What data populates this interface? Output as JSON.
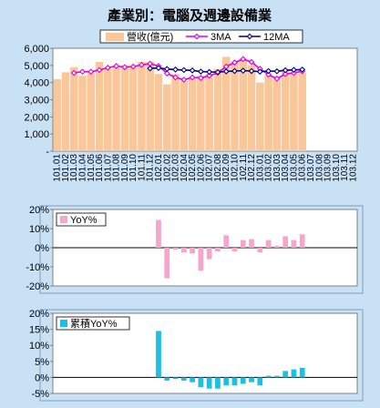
{
  "chart_data": [
    {
      "type": "bar",
      "title": "產業別：電腦及週邊設備業",
      "categories": [
        "101.01",
        "101.02",
        "101.03",
        "101.04",
        "101.05",
        "101.06",
        "101.07",
        "101.08",
        "101.09",
        "101.10",
        "101.11",
        "101.12",
        "102.01",
        "102.02",
        "102.03",
        "102.04",
        "102.05",
        "102.06",
        "102.07",
        "102.08",
        "102.09",
        "102.10",
        "102.11",
        "102.12",
        "103.01",
        "103.02",
        "103.03",
        "103.04",
        "103.05",
        "103.06",
        "103.07",
        "103.08",
        "103.09",
        "103.10",
        "103.11",
        "103.12"
      ],
      "ylim": [
        0,
        6000
      ],
      "yticks": [
        0,
        1000,
        2000,
        3000,
        4000,
        5000,
        6000
      ],
      "ytick_labels": [
        "-",
        "1,000",
        "2,000",
        "3,000",
        "4,000",
        "5,000",
        "6,000"
      ],
      "legend_position": "top",
      "grid": false,
      "colors": {
        "bar": "#f9c79a",
        "ma3": "#e000e0",
        "ma12": "#000080"
      },
      "series": [
        {
          "name": "營收(億元)",
          "kind": "bar",
          "values": [
            4200,
            4600,
            4900,
            4400,
            4600,
            5200,
            4800,
            4900,
            5000,
            4900,
            5200,
            5200,
            4500,
            3900,
            4500,
            4100,
            4300,
            4400,
            4500,
            4800,
            5500,
            5200,
            5400,
            5000,
            4000,
            4400,
            4300,
            4800,
            4600,
            4600,
            null,
            null,
            null,
            null,
            null,
            null
          ]
        },
        {
          "name": "3MA",
          "kind": "line",
          "values": [
            null,
            null,
            4567,
            4633,
            4633,
            4733,
            4867,
            4967,
            4900,
            4933,
            5033,
            5100,
            4967,
            4533,
            4300,
            4167,
            4300,
            4267,
            4400,
            4567,
            4933,
            5167,
            5367,
            5200,
            4800,
            4467,
            4233,
            4500,
            4567,
            4667,
            null,
            null,
            null,
            null,
            null,
            null
          ]
        },
        {
          "name": "12MA",
          "kind": "line",
          "values": [
            null,
            null,
            null,
            null,
            null,
            null,
            null,
            null,
            null,
            null,
            null,
            4825,
            4850,
            4792,
            4758,
            4733,
            4708,
            4642,
            4617,
            4608,
            4650,
            4675,
            4692,
            4675,
            4633,
            4675,
            4658,
            4717,
            4742,
            4758,
            null,
            null,
            null,
            null,
            null,
            null
          ]
        }
      ]
    },
    {
      "type": "bar",
      "ylim": [
        -0.2,
        0.2
      ],
      "yticks": [
        -0.2,
        -0.1,
        0,
        0.1,
        0.2
      ],
      "ytick_labels": [
        "-20%",
        "-10%",
        "0%",
        "10%",
        "20%"
      ],
      "legend_position": "top-left",
      "colors": {
        "bar": "#f4a6cd"
      },
      "series": [
        {
          "name": "YoY%",
          "values": [
            null,
            null,
            null,
            null,
            null,
            null,
            null,
            null,
            null,
            null,
            null,
            null,
            0.145,
            -0.16,
            -0.01,
            -0.025,
            -0.03,
            -0.12,
            -0.06,
            -0.02,
            0.065,
            -0.02,
            0.04,
            0.045,
            -0.025,
            0.04,
            0.01,
            0.06,
            0.04,
            0.07,
            null,
            null,
            null,
            null,
            null,
            null
          ]
        }
      ]
    },
    {
      "type": "bar",
      "ylim": [
        -0.05,
        0.2
      ],
      "yticks": [
        -0.05,
        0,
        0.05,
        0.1,
        0.15,
        0.2
      ],
      "ytick_labels": [
        "-5%",
        "0%",
        "5%",
        "10%",
        "15%",
        "20%"
      ],
      "legend_position": "top-left",
      "colors": {
        "bar": "#1ebfe5"
      },
      "series": [
        {
          "name": "累積YoY%",
          "values": [
            null,
            null,
            null,
            null,
            null,
            null,
            null,
            null,
            null,
            null,
            null,
            null,
            0.145,
            -0.01,
            -0.005,
            -0.01,
            -0.015,
            -0.03,
            -0.035,
            -0.035,
            -0.025,
            -0.025,
            -0.02,
            -0.015,
            -0.025,
            0.005,
            0.005,
            0.02,
            0.025,
            0.03,
            null,
            null,
            null,
            null,
            null,
            null
          ]
        }
      ]
    }
  ]
}
